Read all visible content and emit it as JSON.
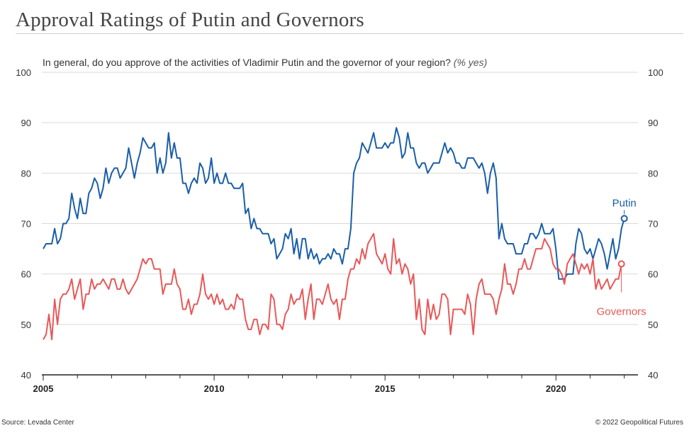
{
  "header": {
    "title": "Approval Ratings of Putin and Governors",
    "subtitle": "In general, do you approve of the activities of Vladimir Putin and the governor of your region?",
    "subtitle_unit": "(% yes)"
  },
  "footer": {
    "source": "Source: Levada Center",
    "copyright": "© 2022 Geopolitical Futures"
  },
  "colors": {
    "putin": "#1a5ea8",
    "governors": "#e85858",
    "grid": "#d9d9d9",
    "axis": "#222222"
  },
  "chart_data": {
    "type": "line",
    "title": "Approval Ratings of Putin and Governors",
    "ylim": [
      40,
      100
    ],
    "yticks": [
      40,
      50,
      60,
      70,
      80,
      90,
      100
    ],
    "xlim": [
      2005,
      2022.4
    ],
    "xticks": [
      "2005",
      "2010",
      "2015",
      "2020"
    ],
    "grid": "horizontal",
    "series": [
      {
        "name": "Putin",
        "x_start": 2005.0,
        "step_years": 0.08333,
        "values": [
          65,
          66,
          66,
          66,
          69,
          66,
          67,
          70,
          70,
          71,
          76,
          73,
          71,
          75,
          72,
          72,
          76,
          77,
          79,
          78,
          75,
          77,
          81,
          78,
          80,
          81,
          81,
          79,
          80,
          81,
          85,
          82,
          79,
          82,
          84,
          87,
          86,
          85,
          85,
          86,
          80,
          83,
          80,
          82,
          88,
          83,
          86,
          83,
          83,
          78,
          78,
          76,
          78,
          79,
          78,
          82,
          81,
          78,
          79,
          83,
          78,
          80,
          78,
          78,
          80,
          78,
          78,
          77,
          77,
          77,
          78,
          72,
          73,
          69,
          71,
          69,
          69,
          68,
          68,
          68,
          66,
          67,
          63,
          64,
          65,
          68,
          67,
          69,
          64,
          67,
          63,
          67,
          67,
          63,
          65,
          63,
          64,
          62,
          63,
          63,
          64,
          63,
          65,
          64,
          64,
          62,
          65,
          65,
          69,
          80,
          82,
          83,
          86,
          85,
          84,
          86,
          88,
          85,
          85,
          85,
          86,
          85,
          86,
          86,
          89,
          87,
          83,
          84,
          88,
          85,
          85,
          82,
          81,
          82,
          82,
          80,
          81,
          82,
          82,
          82,
          84,
          86,
          84,
          85,
          84,
          82,
          82,
          81,
          81,
          83,
          83,
          83,
          82,
          81,
          82,
          80,
          76,
          80,
          82,
          79,
          67,
          70,
          67,
          66,
          66,
          66,
          64,
          64,
          64,
          66,
          66,
          68,
          68,
          67,
          68,
          70,
          68,
          68,
          68,
          69,
          65,
          59,
          59,
          59,
          60,
          60,
          60,
          66,
          69,
          68,
          65,
          64,
          65,
          63,
          65,
          67,
          66,
          64,
          61,
          64,
          67,
          63,
          65,
          69,
          71
        ]
      },
      {
        "name": "Governors",
        "x_start": 2005.0,
        "step_years": 0.08333,
        "values": [
          47,
          48,
          52,
          47,
          55,
          50,
          55,
          56,
          56,
          57,
          59,
          55,
          57,
          59,
          53,
          56,
          56,
          59,
          57,
          58,
          58,
          59,
          58,
          57,
          59,
          59,
          57,
          57,
          59,
          57,
          56,
          57,
          58,
          59,
          61,
          63,
          62,
          63,
          63,
          61,
          61,
          61,
          56,
          58,
          58,
          58,
          61,
          58,
          57,
          53,
          53,
          55,
          52,
          54,
          54,
          56,
          60,
          56,
          55,
          56,
          54,
          56,
          54,
          55,
          53,
          53,
          54,
          53,
          56,
          55,
          55,
          51,
          49,
          49,
          51,
          51,
          48,
          50,
          50,
          49,
          56,
          55,
          50,
          50,
          49,
          52,
          53,
          56,
          54,
          55,
          55,
          57,
          51,
          55,
          58,
          51,
          55,
          55,
          54,
          56,
          58,
          55,
          54,
          55,
          51,
          55,
          55,
          59,
          61,
          61,
          63,
          62,
          65,
          63,
          66,
          67,
          68,
          64,
          63,
          62,
          64,
          61,
          60,
          67,
          62,
          63,
          60,
          62,
          61,
          58,
          60,
          51,
          55,
          49,
          48,
          55,
          51,
          54,
          51,
          52,
          56,
          56,
          55,
          48,
          53,
          53,
          53,
          53,
          52,
          56,
          54,
          48,
          55,
          58,
          59,
          56,
          56,
          56,
          55,
          52,
          55,
          57,
          62,
          58,
          58,
          56,
          58,
          61,
          61,
          63,
          61,
          61,
          63,
          65,
          65,
          65,
          67,
          66,
          65,
          62,
          61,
          61,
          60,
          58,
          62,
          63,
          64,
          62,
          60,
          62,
          61,
          62,
          60,
          63,
          57,
          59,
          57,
          58,
          59,
          57,
          58,
          59,
          59,
          62
        ]
      }
    ]
  }
}
